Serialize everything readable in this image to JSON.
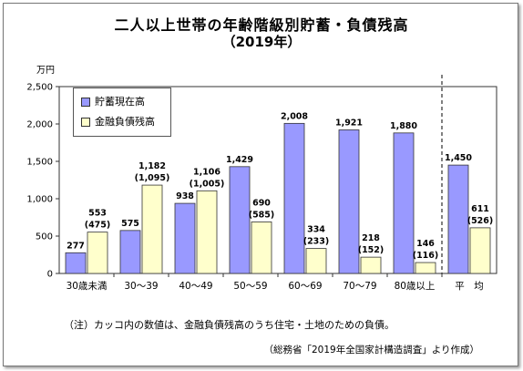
{
  "title": "二人以上世帯の年齢階級別貯蓄・負債残高",
  "subtitle": "（2019年）",
  "note": "（注）カッコ内の数値は、金融負債残高のうち住宅・土地のための負債。",
  "source": "（総務省「2019年全国家計構造調査」より作成）",
  "chart_data": {
    "type": "bar",
    "ylabel": "万円",
    "ylim": [
      0,
      2500
    ],
    "yticks": [
      "0",
      "500",
      "1,000",
      "1,500",
      "2,000",
      "2,500"
    ],
    "categories": [
      "30歳未満",
      "30～39",
      "40～49",
      "50～59",
      "60～69",
      "70～79",
      "80歳以上",
      "平　均"
    ],
    "series": [
      {
        "name": "貯蓄現在高",
        "color": "#9999ff",
        "values": [
          277,
          575,
          938,
          1429,
          2008,
          1921,
          1880,
          1450
        ],
        "labels": [
          "277",
          "575",
          "938",
          "1,429",
          "2,008",
          "1,921",
          "1,880",
          "1,450"
        ]
      },
      {
        "name": "金融負債残高",
        "color": "#ffffcc",
        "values": [
          553,
          1182,
          1106,
          690,
          334,
          218,
          146,
          611
        ],
        "labels": [
          "553",
          "1,182",
          "1,106",
          "690",
          "334",
          "218",
          "146",
          "611"
        ],
        "housing_labels": [
          "(475)",
          "(1,095)",
          "(1,005)",
          "(585)",
          "(233)",
          "(152)",
          "(116)",
          "(526)"
        ]
      }
    ],
    "legend_position": "top-left",
    "grid": false
  }
}
